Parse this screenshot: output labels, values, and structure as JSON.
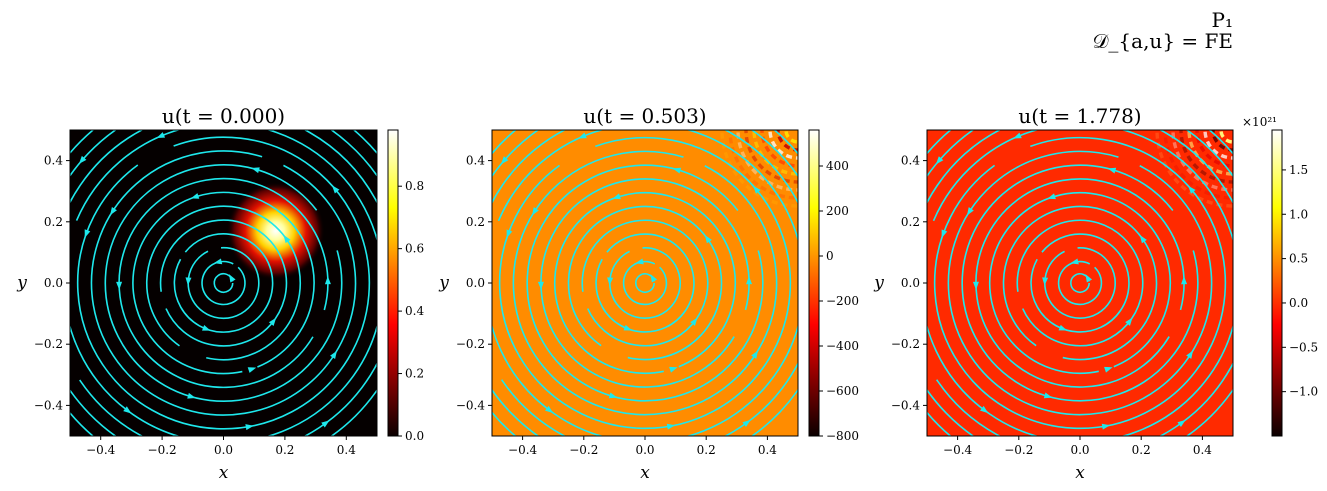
{
  "suptitle": {
    "line1": "P₁",
    "line2": "𝒟_{a,u} = FE"
  },
  "chart_data": [
    {
      "type": "heatmap",
      "title": "u(t = 0.000)",
      "xlabel": "x",
      "ylabel": "y",
      "xlim": [
        -0.5,
        0.5
      ],
      "ylim": [
        -0.5,
        0.5
      ],
      "xticks": [
        -0.4,
        -0.2,
        0.0,
        0.2,
        0.4
      ],
      "xtick_labels": [
        "−0.4",
        "−0.2",
        "0.0",
        "0.2",
        "0.4"
      ],
      "yticks": [
        -0.4,
        -0.2,
        0.0,
        0.2,
        0.4
      ],
      "ytick_labels": [
        "−0.4",
        "−0.2",
        "0.0",
        "0.2",
        "0.4"
      ],
      "colormap": "hot",
      "background": "#050000",
      "feature": {
        "kind": "gaussian",
        "center": [
          0.17,
          0.17
        ],
        "sigma": 0.05,
        "peak": 1.0
      },
      "colorbar": {
        "min": 0.0,
        "max": 0.98,
        "ticks": [
          0.0,
          0.2,
          0.4,
          0.6,
          0.8
        ],
        "tick_labels": [
          "0.0",
          "0.2",
          "0.4",
          "0.6",
          "0.8"
        ],
        "multiplier": ""
      },
      "streamlines": {
        "kind": "circular",
        "center": [
          0,
          0
        ],
        "color": "#1ee8ec",
        "rotation": "counterclockwise"
      }
    },
    {
      "type": "heatmap",
      "title": "u(t = 0.503)",
      "xlabel": "x",
      "ylabel": "y",
      "xlim": [
        -0.5,
        0.5
      ],
      "ylim": [
        -0.5,
        0.5
      ],
      "xticks": [
        -0.4,
        -0.2,
        0.0,
        0.2,
        0.4
      ],
      "xtick_labels": [
        "−0.4",
        "−0.2",
        "0.0",
        "0.2",
        "0.4"
      ],
      "yticks": [
        -0.4,
        -0.2,
        0.0,
        0.2,
        0.4
      ],
      "ytick_labels": [
        "−0.4",
        "−0.2",
        "0.0",
        "0.2",
        "0.4"
      ],
      "colormap": "hot",
      "background": "#ff8c00",
      "feature": {
        "kind": "oscillation-corner",
        "center": [
          0.5,
          0.5
        ]
      },
      "colorbar": {
        "min": -800,
        "max": 560,
        "ticks": [
          -800,
          -600,
          -400,
          -200,
          0,
          200,
          400
        ],
        "tick_labels": [
          "−800",
          "−600",
          "−400",
          "−200",
          "0",
          "200",
          "400"
        ],
        "multiplier": ""
      },
      "streamlines": {
        "kind": "circular",
        "center": [
          0,
          0
        ],
        "color": "#1ee8ec",
        "rotation": "counterclockwise"
      }
    },
    {
      "type": "heatmap",
      "title": "u(t = 1.778)",
      "xlabel": "x",
      "ylabel": "y",
      "xlim": [
        -0.5,
        0.5
      ],
      "ylim": [
        -0.5,
        0.5
      ],
      "xticks": [
        -0.4,
        -0.2,
        0.0,
        0.2,
        0.4
      ],
      "xtick_labels": [
        "−0.4",
        "−0.2",
        "0.0",
        "0.2",
        "0.4"
      ],
      "yticks": [
        -0.4,
        -0.2,
        0.0,
        0.2,
        0.4
      ],
      "ytick_labels": [
        "−0.4",
        "−0.2",
        "0.0",
        "0.2",
        "0.4"
      ],
      "colormap": "hot",
      "background": "#ff2a00",
      "feature": {
        "kind": "oscillation-corner",
        "center": [
          0.5,
          0.5
        ]
      },
      "colorbar": {
        "min": -1.5,
        "max": 1.95,
        "ticks": [
          -1.0,
          -0.5,
          0.0,
          0.5,
          1.0,
          1.5
        ],
        "tick_labels": [
          "−1.0",
          "−0.5",
          "0.0",
          "0.5",
          "1.0",
          "1.5"
        ],
        "multiplier": "×10²¹"
      },
      "streamlines": {
        "kind": "circular",
        "center": [
          0,
          0
        ],
        "color": "#1ee8ec",
        "rotation": "counterclockwise"
      }
    }
  ]
}
